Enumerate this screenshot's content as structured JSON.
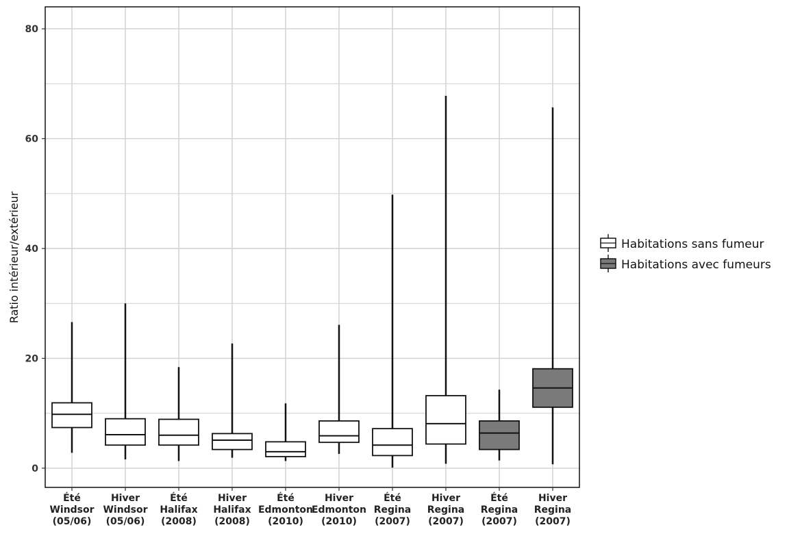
{
  "chart_data": {
    "type": "box",
    "title": "",
    "xlabel": "",
    "ylabel": "Ratio intérieur/extérieur",
    "ylim": [
      -3.5,
      84
    ],
    "yticks": [
      0,
      20,
      40,
      60,
      80
    ],
    "ytick_labels": [
      "0",
      "20",
      "40",
      "60",
      "80"
    ],
    "grid": true,
    "legend_position": "right",
    "colors": {
      "sans_fumeur": "#ffffff",
      "avec_fumeurs": "#7a7a7a",
      "grid": "#d0d0d0",
      "stroke": "#111111"
    },
    "legend": [
      {
        "name": "Habitations sans fumeur",
        "group": "sans_fumeur"
      },
      {
        "name": "Habitations avec fumeurs",
        "group": "avec_fumeurs"
      }
    ],
    "categories": [
      {
        "label": [
          "Été",
          "Windsor",
          "(05/06)"
        ],
        "group": "sans_fumeur",
        "min": 2.8,
        "q1": 7.4,
        "median": 9.8,
        "q3": 11.9,
        "max": 26.6
      },
      {
        "label": [
          "Hiver",
          "Windsor",
          "(05/06)"
        ],
        "group": "sans_fumeur",
        "min": 1.6,
        "q1": 4.2,
        "median": 6.1,
        "q3": 9.0,
        "max": 30.0
      },
      {
        "label": [
          "Été",
          "Halifax",
          "(2008)"
        ],
        "group": "sans_fumeur",
        "min": 1.3,
        "q1": 4.2,
        "median": 6.0,
        "q3": 8.9,
        "max": 18.4
      },
      {
        "label": [
          "Hiver",
          "Halifax",
          "(2008)"
        ],
        "group": "sans_fumeur",
        "min": 1.9,
        "q1": 3.4,
        "median": 5.1,
        "q3": 6.3,
        "max": 22.7
      },
      {
        "label": [
          "Été",
          "Edmonton",
          "(2010)"
        ],
        "group": "sans_fumeur",
        "min": 1.3,
        "q1": 2.1,
        "median": 3.0,
        "q3": 4.8,
        "max": 11.8
      },
      {
        "label": [
          "Hiver",
          "Edmonton",
          "(2010)"
        ],
        "group": "sans_fumeur",
        "min": 2.6,
        "q1": 4.7,
        "median": 5.9,
        "q3": 8.6,
        "max": 26.1
      },
      {
        "label": [
          "Été",
          "Regina",
          "(2007)"
        ],
        "group": "sans_fumeur",
        "min": 0.1,
        "q1": 2.3,
        "median": 4.2,
        "q3": 7.2,
        "max": 49.8
      },
      {
        "label": [
          "Hiver",
          "Regina",
          "(2007)"
        ],
        "group": "sans_fumeur",
        "min": 0.8,
        "q1": 4.4,
        "median": 8.1,
        "q3": 13.2,
        "max": 67.8
      },
      {
        "label": [
          "Été",
          "Regina",
          "(2007)"
        ],
        "group": "avec_fumeurs",
        "min": 1.4,
        "q1": 3.4,
        "median": 6.4,
        "q3": 8.6,
        "max": 14.3
      },
      {
        "label": [
          "Hiver",
          "Regina",
          "(2007)"
        ],
        "group": "avec_fumeurs",
        "min": 0.7,
        "q1": 11.1,
        "median": 14.6,
        "q3": 18.1,
        "max": 65.7
      }
    ]
  }
}
